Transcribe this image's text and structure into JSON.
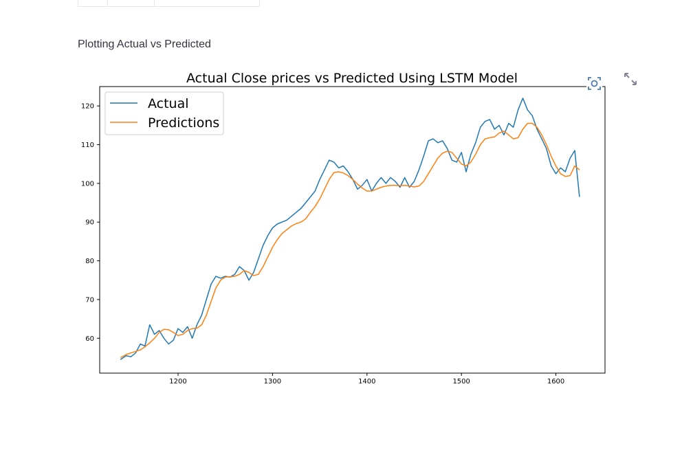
{
  "subheading": "Plotting Actual vs Predicted",
  "table_stub": {
    "columns": [
      "",
      "",
      ""
    ]
  },
  "icons": {
    "camera": "camera-icon",
    "fullscreen": "fullscreen-icon"
  },
  "chart_data": {
    "type": "line",
    "title": "Actual Close prices vs Predicted Using LSTM Model",
    "xlabel": "",
    "ylabel": "",
    "xlim": [
      1117,
      1652
    ],
    "ylim": [
      51,
      125
    ],
    "xticks": [
      1200,
      1300,
      1400,
      1500,
      1600
    ],
    "yticks": [
      60,
      70,
      80,
      90,
      100,
      110,
      120
    ],
    "grid": false,
    "legend": "upper-left",
    "series": [
      {
        "name": "Actual",
        "color": "#1f77b4",
        "x": [
          1139,
          1145,
          1150,
          1155,
          1160,
          1165,
          1170,
          1175,
          1180,
          1185,
          1190,
          1195,
          1200,
          1205,
          1210,
          1215,
          1220,
          1225,
          1230,
          1235,
          1240,
          1245,
          1250,
          1255,
          1260,
          1265,
          1270,
          1275,
          1280,
          1285,
          1290,
          1295,
          1300,
          1305,
          1310,
          1315,
          1320,
          1325,
          1330,
          1335,
          1340,
          1345,
          1350,
          1355,
          1360,
          1365,
          1370,
          1375,
          1380,
          1385,
          1390,
          1395,
          1400,
          1405,
          1410,
          1415,
          1420,
          1425,
          1430,
          1435,
          1440,
          1445,
          1450,
          1455,
          1460,
          1465,
          1470,
          1475,
          1480,
          1485,
          1490,
          1495,
          1500,
          1505,
          1510,
          1515,
          1520,
          1525,
          1530,
          1535,
          1540,
          1545,
          1550,
          1555,
          1560,
          1565,
          1570,
          1575,
          1580,
          1585,
          1590,
          1595,
          1600,
          1605,
          1610,
          1615,
          1620,
          1625
        ],
        "values": [
          54.5,
          55.5,
          55.2,
          56.2,
          58.5,
          58.0,
          63.5,
          61.0,
          62.0,
          60.0,
          58.5,
          59.5,
          62.5,
          61.5,
          63.0,
          60.0,
          63.5,
          66.0,
          70.0,
          74.0,
          76.0,
          75.5,
          76.0,
          75.8,
          76.5,
          78.5,
          77.5,
          75.0,
          77.0,
          80.5,
          84.0,
          86.5,
          88.5,
          89.5,
          90.0,
          90.5,
          91.5,
          92.5,
          93.5,
          95.0,
          96.5,
          98.0,
          101.0,
          103.5,
          106.0,
          105.5,
          104.0,
          104.5,
          103.0,
          101.0,
          98.5,
          99.5,
          101.0,
          98.0,
          100.0,
          101.5,
          100.0,
          101.5,
          100.5,
          99.0,
          101.5,
          99.0,
          100.5,
          103.5,
          107.0,
          111.0,
          111.5,
          110.5,
          111.0,
          109.0,
          106.0,
          105.5,
          108.0,
          103.0,
          107.5,
          110.5,
          114.5,
          116.0,
          116.5,
          114.0,
          115.0,
          112.5,
          115.5,
          114.5,
          119.0,
          122.0,
          119.0,
          117.5,
          114.0,
          111.5,
          109.0,
          104.5,
          102.5,
          104.0,
          103.0,
          106.5,
          108.5,
          96.5
        ]
      },
      {
        "name": "Predictions",
        "color": "#ff7f0e",
        "x": [
          1139,
          1145,
          1150,
          1155,
          1160,
          1165,
          1170,
          1175,
          1180,
          1185,
          1190,
          1195,
          1200,
          1205,
          1210,
          1215,
          1220,
          1225,
          1230,
          1235,
          1240,
          1245,
          1250,
          1255,
          1260,
          1265,
          1270,
          1275,
          1280,
          1285,
          1290,
          1295,
          1300,
          1305,
          1310,
          1315,
          1320,
          1325,
          1330,
          1335,
          1340,
          1345,
          1350,
          1355,
          1360,
          1365,
          1370,
          1375,
          1380,
          1385,
          1390,
          1395,
          1400,
          1405,
          1410,
          1415,
          1420,
          1425,
          1430,
          1435,
          1440,
          1445,
          1450,
          1455,
          1460,
          1465,
          1470,
          1475,
          1480,
          1485,
          1490,
          1495,
          1500,
          1505,
          1510,
          1515,
          1520,
          1525,
          1530,
          1535,
          1540,
          1545,
          1550,
          1555,
          1560,
          1565,
          1570,
          1575,
          1580,
          1585,
          1590,
          1595,
          1600,
          1605,
          1610,
          1615,
          1620,
          1625
        ],
        "values": [
          55.0,
          55.8,
          56.2,
          56.6,
          57.0,
          57.8,
          58.8,
          60.0,
          61.5,
          62.3,
          62.2,
          61.5,
          60.7,
          61.0,
          62.0,
          62.5,
          62.6,
          63.5,
          66.0,
          69.5,
          73.0,
          75.0,
          75.8,
          75.9,
          76.0,
          76.5,
          77.5,
          77.0,
          76.2,
          76.5,
          78.5,
          81.0,
          83.5,
          85.5,
          87.0,
          88.0,
          89.0,
          89.6,
          90.0,
          90.8,
          92.5,
          94.0,
          96.0,
          98.5,
          101.0,
          102.8,
          103.0,
          102.7,
          102.0,
          101.0,
          99.8,
          98.8,
          98.0,
          98.0,
          98.5,
          99.0,
          99.3,
          99.5,
          99.5,
          99.4,
          99.5,
          99.3,
          99.1,
          99.3,
          100.5,
          102.5,
          104.5,
          106.5,
          107.8,
          108.3,
          108.0,
          106.5,
          105.0,
          104.5,
          105.5,
          107.5,
          110.0,
          111.5,
          111.8,
          112.0,
          113.0,
          113.5,
          112.5,
          111.5,
          111.8,
          114.0,
          115.5,
          115.5,
          114.5,
          112.5,
          110.0,
          107.0,
          104.5,
          102.5,
          101.8,
          102.0,
          104.5,
          103.5
        ]
      }
    ]
  }
}
